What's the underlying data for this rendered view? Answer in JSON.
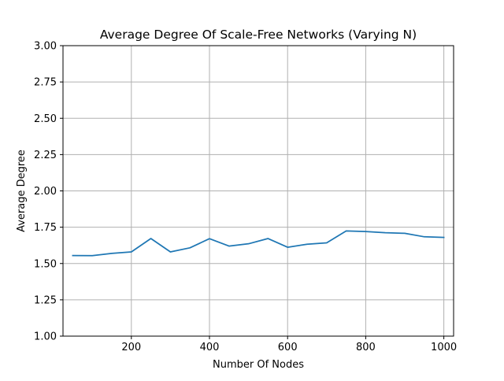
{
  "chart_data": {
    "type": "line",
    "title": "Average Degree Of Scale-Free Networks (Varying N)",
    "xlabel": "Number Of Nodes",
    "ylabel": "Average Degree",
    "xlim": [
      25,
      1025
    ],
    "ylim": [
      1.0,
      3.0
    ],
    "x_ticks": [
      200,
      400,
      600,
      800,
      1000
    ],
    "y_ticks": [
      1.0,
      1.25,
      1.5,
      1.75,
      2.0,
      2.25,
      2.5,
      2.75,
      3.0
    ],
    "x_tick_labels": [
      "200",
      "400",
      "600",
      "800",
      "1000"
    ],
    "y_tick_labels": [
      "1.00",
      "1.25",
      "1.50",
      "1.75",
      "2.00",
      "2.25",
      "2.50",
      "2.75",
      "3.00"
    ],
    "grid": true,
    "series": [
      {
        "color": "#1f77b4",
        "x": [
          50,
          100,
          150,
          200,
          250,
          300,
          350,
          400,
          450,
          500,
          550,
          600,
          650,
          700,
          750,
          800,
          850,
          900,
          950,
          1000
        ],
        "y": [
          1.555,
          1.554,
          1.57,
          1.58,
          1.672,
          1.58,
          1.608,
          1.671,
          1.62,
          1.636,
          1.672,
          1.612,
          1.633,
          1.642,
          1.724,
          1.72,
          1.712,
          1.708,
          1.684,
          1.68
        ]
      }
    ]
  }
}
